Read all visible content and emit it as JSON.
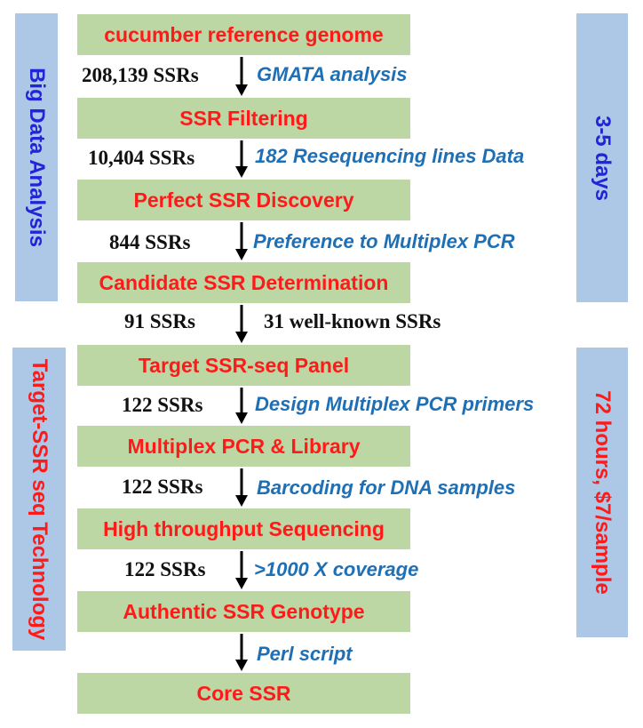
{
  "side_panels": {
    "big_data": {
      "label": "Big Data Analysis",
      "color": "#2323d8"
    },
    "timing_top": {
      "label": "3-5 days",
      "color": "#2323d8"
    },
    "target_ssr": {
      "label": "Target-SSR seq Technology",
      "color": "#ff1a1a"
    },
    "timing_bottom": {
      "label": "72 hours, $7/sample",
      "color": "#ff1a1a"
    }
  },
  "steps": [
    {
      "label": "cucumber reference genome"
    },
    {
      "label": "SSR Filtering"
    },
    {
      "label": "Perfect SSR Discovery"
    },
    {
      "label": "Candidate SSR Determination"
    },
    {
      "label": "Target SSR-seq Panel"
    },
    {
      "label": "Multiplex PCR & Library"
    },
    {
      "label": "High throughput Sequencing"
    },
    {
      "label": "Authentic SSR Genotype"
    },
    {
      "label": "Core SSR"
    }
  ],
  "transitions": [
    {
      "count": "208,139 SSRs",
      "note": "GMATA analysis"
    },
    {
      "count": "10,404 SSRs",
      "note": "182 Resequencing lines Data"
    },
    {
      "count": "844 SSRs",
      "note": "Preference to Multiplex PCR"
    },
    {
      "count": "91 SSRs",
      "note": "31 well-known SSRs"
    },
    {
      "count": "122 SSRs",
      "note": "Design Multiplex PCR primers"
    },
    {
      "count": "122 SSRs",
      "note": "Barcoding for DNA samples"
    },
    {
      "count": "122 SSRs",
      "note": ">1000 X coverage"
    },
    {
      "count": "",
      "note": "Perl script"
    }
  ],
  "colors": {
    "step_fill": "#bcd6a4",
    "step_text": "#ff1a1a",
    "side_fill": "#adc8e6",
    "note_text": "#1f6fb5",
    "count_text": "#111111"
  }
}
